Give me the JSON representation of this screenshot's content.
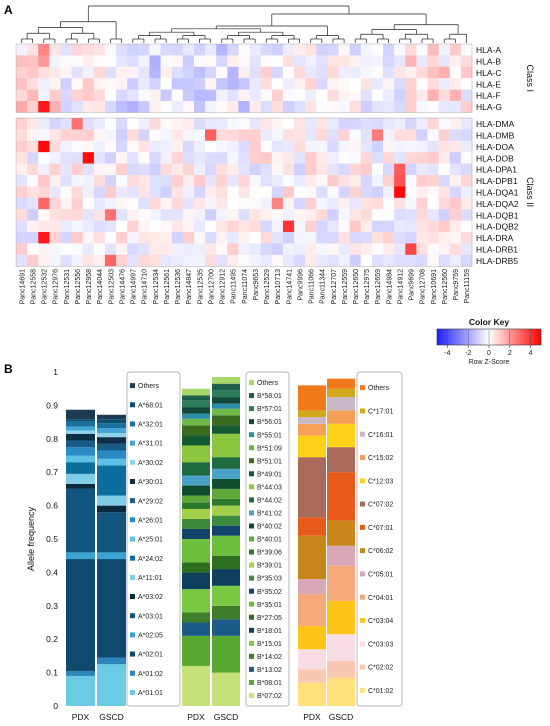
{
  "panels": {
    "a": "A",
    "b": "B"
  },
  "chart_data": [
    {
      "type": "heatmap",
      "rows": [
        "HLA-A",
        "HLA-B",
        "HLA-C",
        "HLA-E",
        "HLA-F",
        "HLA-G",
        "HLA-DMA",
        "HLA-DMB",
        "HLA-DOA",
        "HLA-DOB",
        "HLA-DPA1",
        "HLA-DPB1",
        "HLA-DQA1",
        "HLA-DQA2",
        "HLA-DQB1",
        "HLA-DQB2",
        "HLA-DRA",
        "HLA-DRB1",
        "HLA-DRB5"
      ],
      "row_groups": [
        {
          "label": "Class I",
          "rows": [
            "HLA-A",
            "HLA-B",
            "HLA-C",
            "HLA-E",
            "HLA-F",
            "HLA-G"
          ]
        },
        {
          "label": "Class II",
          "rows": [
            "HLA-DMA",
            "HLA-DMB",
            "HLA-DOA",
            "HLA-DOB",
            "HLA-DPA1",
            "HLA-DPB1",
            "HLA-DQA1",
            "HLA-DQA2",
            "HLA-DQB1",
            "HLA-DQB2",
            "HLA-DRA",
            "HLA-DRB1",
            "HLA-DRB5"
          ]
        }
      ],
      "columns": [
        "Panc14691",
        "Panc12558",
        "Panc12532",
        "Panc12976",
        "Panc12531",
        "Panc12556",
        "Panc12958",
        "Panc14044",
        "Panc12503",
        "Panc14476",
        "Panc14997",
        "Panc14710",
        "Panc12534",
        "Panc12561",
        "Panc12536",
        "Panc14847",
        "Panc12535",
        "Panc12700",
        "Panc12912",
        "Panc11495",
        "Panc11074",
        "Panc9653",
        "Panc12529",
        "Panc10713",
        "Panc14741",
        "Panc9996",
        "Panc11066",
        "Panc11344",
        "Panc12707",
        "Panc12559",
        "Panc12650",
        "Panc12975",
        "Panc12659",
        "Panc14984",
        "Panc14912",
        "Panc9699",
        "Panc12708",
        "Panc10691",
        "Panc12560",
        "Panc9759",
        "Panc11159"
      ],
      "color_key": {
        "title": "Color Key",
        "subtitle": "Row Z-Score",
        "ticks": [
          "-4",
          "-2",
          "0",
          "2",
          "4"
        ],
        "range": [
          -5,
          5
        ],
        "low_color": "#1f1fff",
        "mid_color": "#ffffff",
        "high_color": "#ff0000"
      },
      "highlights": [
        {
          "row": "HLA-A",
          "col": "Panc12532",
          "z": 2.4
        },
        {
          "row": "HLA-B",
          "col": "Panc12532",
          "z": 2.0
        },
        {
          "row": "HLA-G",
          "col": "Panc12532",
          "z": 4.5
        },
        {
          "row": "HLA-DMA",
          "col": "Panc12556",
          "z": 2.8
        },
        {
          "row": "HLA-DMB",
          "col": "Panc12700",
          "z": 3.2
        },
        {
          "row": "HLA-DMB",
          "col": "Panc12659",
          "z": 2.6
        },
        {
          "row": "HLA-DOA",
          "col": "Panc12532",
          "z": 4.8
        },
        {
          "row": "HLA-DOB",
          "col": "Panc12958",
          "z": 4.8
        },
        {
          "row": "HLA-DPA1",
          "col": "Panc14912",
          "z": 3.2
        },
        {
          "row": "HLA-DPB1",
          "col": "Panc14912",
          "z": 3.4
        },
        {
          "row": "HLA-DQA1",
          "col": "Panc14912",
          "z": 4.8
        },
        {
          "row": "HLA-DQA2",
          "col": "Panc12532",
          "z": 3.0
        },
        {
          "row": "HLA-DQA2",
          "col": "Panc10713",
          "z": 2.4
        },
        {
          "row": "HLA-DQB1",
          "col": "Panc12503",
          "z": 2.8
        },
        {
          "row": "HLA-DQB2",
          "col": "Panc14741",
          "z": 4.0
        },
        {
          "row": "HLA-DRA",
          "col": "Panc12532",
          "z": 4.5
        },
        {
          "row": "HLA-DRB1",
          "col": "Panc9699",
          "z": 3.6
        },
        {
          "row": "HLA-DRB5",
          "col": "Panc12503",
          "z": 3.0
        }
      ]
    },
    {
      "type": "bar",
      "stacked": true,
      "ylabel": "Allele frequency",
      "ylim": [
        0,
        1
      ],
      "yticks": [
        "0",
        "0.1",
        "0.2",
        "0.3",
        "0.4",
        "0.5",
        "0.6",
        "0.7",
        "0.8",
        "0.9",
        "1"
      ],
      "groups": [
        {
          "gene": "HLA-A",
          "categories": [
            "PDX",
            "GSCD"
          ],
          "legend": [
            "Others",
            "A*68:01",
            "A*32:01",
            "A*31:01",
            "A*30:02",
            "A*30:01",
            "A*29:02",
            "A*26:01",
            "A*25:01",
            "A*24:02",
            "A*11:01",
            "A*03:02",
            "A*03:01",
            "A*02:05",
            "A*02:01",
            "A*01:02",
            "A*01:01"
          ],
          "colors": [
            "#1c3c55",
            "#0a4f74",
            "#1f6f9c",
            "#41a6d6",
            "#8fd3ec",
            "#0c2f45",
            "#1b5b87",
            "#2a8bc4",
            "#5cc0e3",
            "#0d6e9e",
            "#7fcde6",
            "#0a2a3d",
            "#12567f",
            "#3aa3d1",
            "#0f4a6e",
            "#2c87b8",
            "#6ccbe4"
          ],
          "series": [
            {
              "name": "PDX",
              "values": [
                0.03,
                0.005,
                0.015,
                0.012,
                0.01,
                0.02,
                0.02,
                0.025,
                0.02,
                0.035,
                0.03,
                0.015,
                0.19,
                0.02,
                0.335,
                0.015,
                0.09
              ]
            },
            {
              "name": "GSCD",
              "values": [
                0.015,
                0.01,
                0.015,
                0.015,
                0.012,
                0.02,
                0.02,
                0.025,
                0.02,
                0.09,
                0.03,
                0.02,
                0.12,
                0.02,
                0.295,
                0.02,
                0.125
              ]
            }
          ]
        },
        {
          "gene": "HLA-B",
          "categories": [
            "PDX",
            "GSCD"
          ],
          "legend": [
            "Others",
            "B*58:01",
            "B*57:01",
            "B*56:01",
            "B*55:01",
            "B*51:09",
            "B*51:01",
            "B*49:01",
            "B*44:03",
            "B*44:02",
            "B*41:02",
            "B*40:02",
            "B*40:01",
            "B*39:06",
            "B*39:01",
            "B*35:03",
            "B*35:02",
            "B*35:01",
            "B*27:05",
            "B*18:01",
            "B*15:01",
            "B*14:02",
            "B*13:02",
            "B*08:01",
            "B*07:02"
          ],
          "colors": [
            "#a8d86a",
            "#1f5f4a",
            "#2e7d5a",
            "#154a3a",
            "#2a8fa8",
            "#6fb84a",
            "#3a6b1f",
            "#145a32",
            "#8cc63f",
            "#1d6b3f",
            "#4aa3c6",
            "#0f4d2e",
            "#5fa83a",
            "#2b7a2b",
            "#a3d14a",
            "#3c8a3c",
            "#12436b",
            "#6bbf3a",
            "#2d6e1f",
            "#0e3f5c",
            "#7ac943",
            "#3f7d2a",
            "#1c5a8a",
            "#58a832",
            "#c6e07a"
          ],
          "series": [
            {
              "name": "PDX",
              "values": [
                0.02,
                0.015,
                0.02,
                0.02,
                0.015,
                0.02,
                0.03,
                0.03,
                0.05,
                0.04,
                0.03,
                0.03,
                0.02,
                0.02,
                0.03,
                0.03,
                0.03,
                0.07,
                0.03,
                0.05,
                0.07,
                0.03,
                0.04,
                0.09,
                0.12
              ]
            },
            {
              "name": "GSCD",
              "values": [
                0.02,
                0.02,
                0.02,
                0.02,
                0.015,
                0.02,
                0.03,
                0.025,
                0.07,
                0.035,
                0.03,
                0.03,
                0.03,
                0.02,
                0.03,
                0.03,
                0.03,
                0.06,
                0.04,
                0.05,
                0.06,
                0.04,
                0.05,
                0.11,
                0.1
              ]
            }
          ]
        },
        {
          "gene": "HLA-C",
          "categories": [
            "PDX",
            "GSCD"
          ],
          "legend": [
            "Others",
            "C*17:01",
            "C*16:01",
            "C*15:02",
            "C*12:03",
            "C*07:02",
            "C*07:01",
            "C*06:02",
            "C*05:01",
            "C*04:01",
            "C*03:04",
            "C*03:03",
            "C*02:02",
            "C*01:02"
          ],
          "colors": [
            "#f07a1a",
            "#d4a81c",
            "#c9b8c8",
            "#f5a05a",
            "#ffd21a",
            "#a86a5a",
            "#e85a1a",
            "#c8861a",
            "#d8a8b8",
            "#f5a878",
            "#ffc41a",
            "#f8dce4",
            "#f8c8b0",
            "#ffe07a"
          ],
          "series": [
            {
              "name": "PDX",
              "values": [
                0.075,
                0.02,
                0.02,
                0.035,
                0.065,
                0.18,
                0.055,
                0.13,
                0.045,
                0.095,
                0.07,
                0.06,
                0.04,
                0.07
              ]
            },
            {
              "name": "GSCD",
              "values": [
                0.03,
                0.025,
                0.04,
                0.04,
                0.07,
                0.075,
                0.145,
                0.075,
                0.06,
                0.105,
                0.1,
                0.08,
                0.05,
                0.085
              ]
            }
          ]
        }
      ]
    }
  ]
}
